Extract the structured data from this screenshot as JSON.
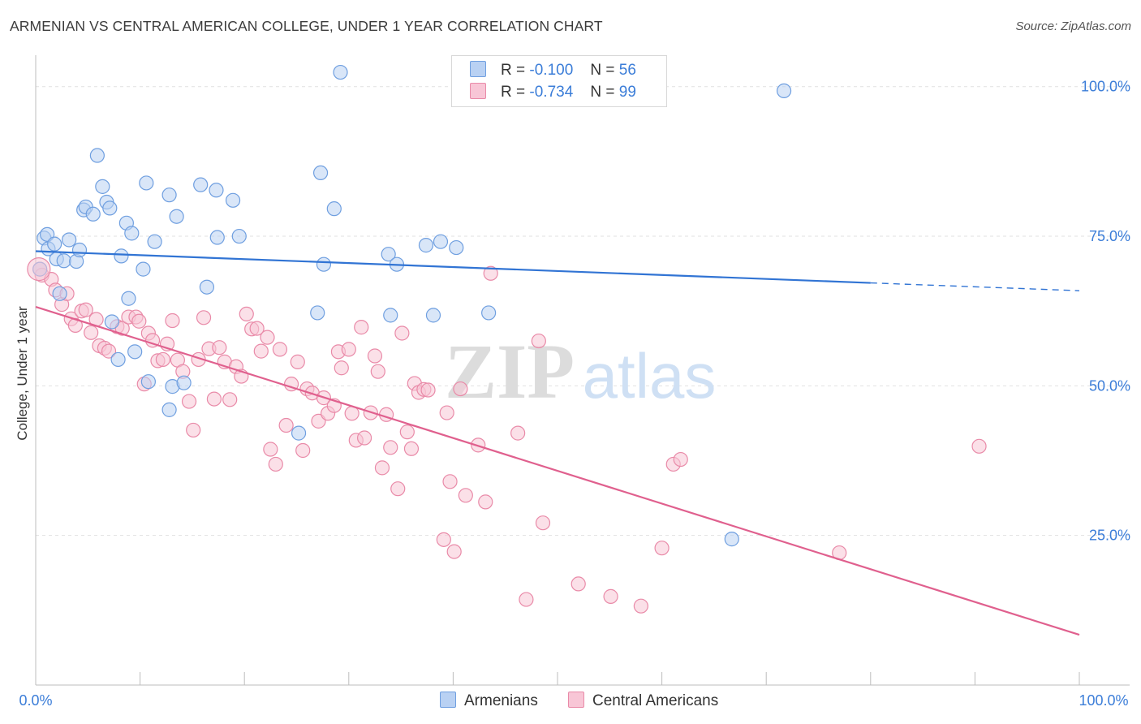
{
  "header": {
    "title": "ARMENIAN VS CENTRAL AMERICAN COLLEGE, UNDER 1 YEAR CORRELATION CHART",
    "source": "Source: ZipAtlas.com"
  },
  "legend": {
    "r_label": "R =",
    "n_label": "N =",
    "series": [
      {
        "name": "Armenians",
        "r": "-0.100",
        "n": "56",
        "fill": "#b9d1f3",
        "stroke": "#6f9fe0"
      },
      {
        "name": "Central Americans",
        "r": "-0.734",
        "n": "99",
        "fill": "#f8c6d6",
        "stroke": "#e98aa8"
      }
    ]
  },
  "watermark": {
    "zip": "ZIP",
    "atlas": "atlas"
  },
  "colors": {
    "armenian_line": "#3174d4",
    "central_line": "#e0608e",
    "axis_label": "#3b7dd8",
    "grid": "#e1e1e1"
  },
  "chart_data": {
    "type": "scatter",
    "title": "ARMENIAN VS CENTRAL AMERICAN COLLEGE, UNDER 1 YEAR CORRELATION CHART",
    "xlabel": "",
    "ylabel": "College, Under 1 year",
    "xlim": [
      0,
      100
    ],
    "ylim": [
      0,
      100
    ],
    "x_tick_labels": [
      "0.0%",
      "100.0%"
    ],
    "y_tick_labels": [
      "25.0%",
      "50.0%",
      "75.0%",
      "100.0%"
    ],
    "y_ticks": [
      25,
      50,
      75,
      100
    ],
    "grid": true,
    "legend_position": "top-center",
    "series": [
      {
        "name": "Armenians",
        "r": -0.1,
        "n": 56,
        "trend": {
          "x0": 0,
          "y0": 72.5,
          "x1": 80,
          "y1": 67.2,
          "dash_to_x": 100,
          "dash_to_y": 65.9
        },
        "points": [
          [
            0.4,
            69.5
          ],
          [
            0.8,
            74.7
          ],
          [
            1.1,
            75.3
          ],
          [
            1.2,
            72.9
          ],
          [
            1.8,
            73.7
          ],
          [
            2.0,
            71.2
          ],
          [
            2.3,
            65.4
          ],
          [
            2.7,
            70.9
          ],
          [
            3.2,
            74.4
          ],
          [
            3.9,
            70.8
          ],
          [
            4.2,
            72.7
          ],
          [
            4.6,
            79.4
          ],
          [
            4.8,
            79.9
          ],
          [
            5.5,
            78.7
          ],
          [
            5.9,
            88.5
          ],
          [
            6.4,
            83.3
          ],
          [
            6.8,
            80.7
          ],
          [
            7.1,
            79.7
          ],
          [
            7.3,
            60.7
          ],
          [
            7.9,
            54.4
          ],
          [
            8.2,
            71.7
          ],
          [
            8.7,
            77.2
          ],
          [
            8.9,
            64.6
          ],
          [
            9.2,
            75.5
          ],
          [
            9.5,
            55.7
          ],
          [
            10.3,
            69.5
          ],
          [
            10.6,
            83.9
          ],
          [
            10.8,
            50.7
          ],
          [
            11.4,
            74.1
          ],
          [
            12.8,
            81.9
          ],
          [
            12.8,
            46.0
          ],
          [
            13.1,
            49.9
          ],
          [
            13.5,
            78.3
          ],
          [
            14.2,
            50.5
          ],
          [
            15.8,
            83.6
          ],
          [
            16.4,
            66.5
          ],
          [
            17.3,
            82.7
          ],
          [
            17.4,
            74.8
          ],
          [
            18.9,
            81.0
          ],
          [
            19.5,
            75.0
          ],
          [
            25.2,
            42.1
          ],
          [
            27.0,
            62.2
          ],
          [
            27.3,
            85.6
          ],
          [
            27.6,
            70.3
          ],
          [
            28.6,
            79.6
          ],
          [
            29.2,
            102.4
          ],
          [
            33.8,
            72.0
          ],
          [
            34.0,
            61.8
          ],
          [
            34.6,
            70.3
          ],
          [
            37.4,
            73.5
          ],
          [
            38.1,
            61.8
          ],
          [
            38.8,
            74.1
          ],
          [
            40.3,
            73.1
          ],
          [
            43.4,
            62.2
          ],
          [
            66.7,
            24.4
          ],
          [
            71.7,
            99.3
          ]
        ]
      },
      {
        "name": "Central Americans",
        "r": -0.734,
        "n": 99,
        "trend": {
          "x0": 0,
          "y0": 63.2,
          "x1": 100,
          "y1": 8.4
        },
        "points": [
          [
            0.4,
            69.5
          ],
          [
            0.6,
            68.5
          ],
          [
            1.5,
            67.8
          ],
          [
            1.9,
            66.0
          ],
          [
            2.5,
            63.6
          ],
          [
            3.0,
            65.4
          ],
          [
            3.4,
            61.2
          ],
          [
            3.8,
            60.1
          ],
          [
            4.4,
            62.5
          ],
          [
            4.8,
            62.7
          ],
          [
            5.3,
            58.9
          ],
          [
            5.8,
            61.1
          ],
          [
            6.1,
            56.7
          ],
          [
            6.6,
            56.3
          ],
          [
            7.0,
            55.8
          ],
          [
            7.8,
            59.9
          ],
          [
            8.3,
            59.6
          ],
          [
            8.9,
            61.5
          ],
          [
            9.6,
            61.5
          ],
          [
            9.9,
            60.8
          ],
          [
            10.4,
            50.3
          ],
          [
            10.8,
            58.8
          ],
          [
            11.2,
            57.6
          ],
          [
            11.7,
            54.2
          ],
          [
            12.2,
            54.4
          ],
          [
            12.6,
            57.0
          ],
          [
            13.1,
            60.9
          ],
          [
            13.6,
            54.3
          ],
          [
            14.1,
            52.4
          ],
          [
            14.7,
            47.4
          ],
          [
            15.1,
            42.6
          ],
          [
            15.6,
            54.4
          ],
          [
            16.1,
            61.4
          ],
          [
            16.6,
            56.2
          ],
          [
            17.1,
            47.8
          ],
          [
            17.6,
            56.4
          ],
          [
            18.1,
            54.0
          ],
          [
            18.6,
            47.7
          ],
          [
            19.2,
            53.2
          ],
          [
            19.7,
            51.6
          ],
          [
            20.2,
            62.0
          ],
          [
            20.7,
            59.5
          ],
          [
            21.2,
            59.6
          ],
          [
            21.6,
            55.8
          ],
          [
            22.2,
            58.1
          ],
          [
            22.5,
            39.4
          ],
          [
            23.0,
            36.9
          ],
          [
            23.4,
            56.1
          ],
          [
            24.0,
            43.4
          ],
          [
            24.5,
            50.3
          ],
          [
            25.1,
            54.0
          ],
          [
            25.6,
            39.2
          ],
          [
            26.0,
            49.5
          ],
          [
            26.5,
            48.8
          ],
          [
            27.1,
            44.1
          ],
          [
            27.6,
            48.0
          ],
          [
            28.0,
            45.4
          ],
          [
            28.6,
            46.7
          ],
          [
            29.0,
            55.7
          ],
          [
            29.3,
            53.0
          ],
          [
            30.0,
            56.1
          ],
          [
            30.3,
            45.4
          ],
          [
            30.7,
            40.9
          ],
          [
            31.2,
            59.8
          ],
          [
            31.5,
            41.3
          ],
          [
            32.1,
            45.5
          ],
          [
            32.5,
            55.0
          ],
          [
            32.8,
            52.4
          ],
          [
            33.2,
            36.3
          ],
          [
            33.6,
            45.2
          ],
          [
            34.0,
            39.7
          ],
          [
            34.7,
            32.8
          ],
          [
            35.1,
            58.8
          ],
          [
            35.6,
            42.3
          ],
          [
            36.0,
            39.5
          ],
          [
            36.3,
            50.4
          ],
          [
            36.7,
            48.9
          ],
          [
            37.2,
            49.4
          ],
          [
            37.6,
            49.3
          ],
          [
            39.1,
            24.3
          ],
          [
            39.4,
            45.5
          ],
          [
            39.7,
            34.0
          ],
          [
            40.1,
            22.3
          ],
          [
            40.7,
            49.5
          ],
          [
            41.2,
            31.7
          ],
          [
            42.4,
            40.1
          ],
          [
            43.1,
            30.6
          ],
          [
            43.6,
            68.8
          ],
          [
            46.2,
            42.1
          ],
          [
            47.0,
            14.3
          ],
          [
            48.2,
            57.5
          ],
          [
            48.6,
            27.1
          ],
          [
            52.0,
            16.9
          ],
          [
            55.1,
            14.8
          ],
          [
            58.0,
            13.2
          ],
          [
            60.0,
            22.9
          ],
          [
            61.1,
            36.9
          ],
          [
            61.8,
            37.7
          ],
          [
            77.0,
            22.1
          ],
          [
            90.4,
            39.9
          ]
        ]
      }
    ]
  }
}
